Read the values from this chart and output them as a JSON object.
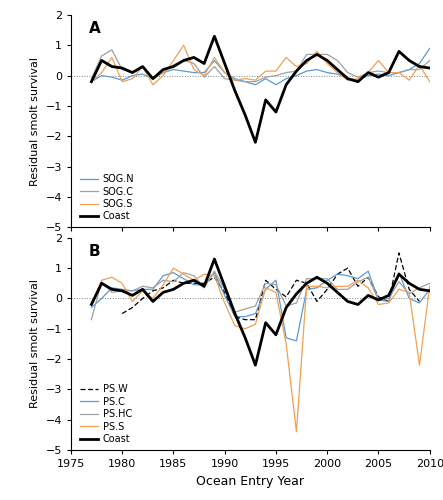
{
  "years": [
    1977,
    1978,
    1979,
    1980,
    1981,
    1982,
    1983,
    1984,
    1985,
    1986,
    1987,
    1988,
    1989,
    1990,
    1991,
    1992,
    1993,
    1994,
    1995,
    1996,
    1997,
    1998,
    1999,
    2000,
    2001,
    2002,
    2003,
    2004,
    2005,
    2006,
    2007,
    2008,
    2009,
    2010
  ],
  "coast": [
    -0.2,
    0.5,
    0.3,
    0.25,
    0.1,
    0.3,
    -0.1,
    0.2,
    0.3,
    0.5,
    0.6,
    0.4,
    1.3,
    0.4,
    -0.5,
    -1.3,
    -2.2,
    -0.8,
    -1.2,
    -0.3,
    0.15,
    0.5,
    0.7,
    0.5,
    0.2,
    -0.1,
    -0.2,
    0.1,
    -0.05,
    0.1,
    0.8,
    0.5,
    0.3,
    0.25
  ],
  "SOG_N": [
    -0.2,
    0.0,
    -0.05,
    -0.15,
    0.0,
    0.05,
    -0.1,
    0.1,
    0.2,
    0.15,
    0.1,
    0.1,
    0.5,
    0.1,
    -0.1,
    -0.2,
    -0.3,
    -0.1,
    -0.3,
    -0.1,
    0.0,
    0.15,
    0.2,
    0.1,
    0.05,
    -0.1,
    -0.15,
    0.0,
    0.05,
    0.0,
    0.1,
    0.2,
    0.4,
    0.9
  ],
  "SOG_C": [
    -0.1,
    0.65,
    0.85,
    0.2,
    0.1,
    0.3,
    -0.1,
    0.1,
    0.35,
    0.5,
    0.4,
    -0.05,
    0.3,
    -0.1,
    -0.15,
    -0.2,
    -0.2,
    -0.05,
    0.0,
    0.1,
    0.15,
    0.7,
    0.7,
    0.7,
    0.5,
    0.1,
    -0.05,
    0.1,
    0.15,
    0.1,
    0.1,
    0.2,
    0.2,
    0.5
  ],
  "SOG_S": [
    -0.2,
    0.1,
    0.6,
    -0.2,
    -0.1,
    0.3,
    -0.3,
    0.0,
    0.5,
    1.0,
    0.2,
    0.0,
    0.6,
    0.1,
    -0.15,
    -0.1,
    -0.15,
    0.15,
    0.15,
    0.6,
    0.3,
    0.4,
    0.8,
    0.4,
    0.1,
    -0.15,
    -0.1,
    0.1,
    0.5,
    0.1,
    0.1,
    -0.15,
    0.35,
    -0.2
  ],
  "PS_W": [
    null,
    null,
    null,
    -0.5,
    -0.3,
    0.0,
    0.25,
    0.35,
    0.6,
    0.5,
    0.5,
    0.5,
    0.7,
    0.2,
    -0.6,
    -0.7,
    -0.7,
    0.6,
    0.3,
    0.05,
    0.6,
    0.5,
    -0.1,
    0.3,
    0.8,
    1.0,
    0.4,
    0.7,
    0.05,
    -0.1,
    1.5,
    0.3,
    -0.1,
    null
  ],
  "PS_C": [
    -0.3,
    0.0,
    0.35,
    0.3,
    0.25,
    0.3,
    0.3,
    0.75,
    0.85,
    0.65,
    0.45,
    0.45,
    0.85,
    0.1,
    -0.6,
    -0.6,
    -0.5,
    0.3,
    0.6,
    -1.3,
    -1.4,
    0.3,
    0.35,
    0.6,
    0.8,
    0.75,
    0.65,
    0.9,
    -0.05,
    -0.1,
    0.85,
    0.0,
    -0.15,
    0.3
  ],
  "PS_HC": [
    -0.7,
    0.55,
    0.2,
    0.25,
    0.25,
    0.4,
    0.35,
    0.6,
    0.55,
    0.85,
    0.75,
    0.35,
    0.9,
    0.3,
    -0.45,
    -0.35,
    -0.25,
    0.5,
    0.45,
    -0.25,
    -0.15,
    0.65,
    0.65,
    0.65,
    0.3,
    0.3,
    0.55,
    0.7,
    -0.05,
    0.0,
    0.55,
    0.15,
    0.35,
    0.5
  ],
  "PS_S": [
    -0.2,
    0.6,
    0.7,
    0.5,
    -0.1,
    0.25,
    0.0,
    0.45,
    1.0,
    0.8,
    0.6,
    0.8,
    0.75,
    -0.15,
    -0.9,
    -1.0,
    -0.85,
    0.35,
    0.2,
    -1.5,
    -4.4,
    0.4,
    0.4,
    0.35,
    0.4,
    0.4,
    0.6,
    0.35,
    -0.2,
    -0.15,
    0.3,
    0.2,
    -2.2,
    0.4
  ],
  "color_blue": "#5b9bd5",
  "color_gray": "#a0a0a0",
  "color_orange": "#f0a050",
  "color_black": "#000000",
  "ylim": [
    -5,
    2
  ],
  "xlim": [
    1975,
    2010
  ],
  "yticks": [
    -5,
    -4,
    -3,
    -2,
    -1,
    0,
    1,
    2
  ],
  "xticks": [
    1975,
    1980,
    1985,
    1990,
    1995,
    2000,
    2005,
    2010
  ],
  "ylabel": "Residual smolt survival",
  "xlabel": "Ocean Entry Year",
  "legend_A": [
    "SOG.N",
    "SOG.C",
    "SOG.S",
    "Coast"
  ],
  "legend_B": [
    "PS.W",
    "PS.C",
    "PS.HC",
    "PS.S",
    "Coast"
  ],
  "label_A": "A",
  "label_B": "B",
  "title_fontsize": 11,
  "axis_fontsize": 8,
  "legend_fontsize": 7,
  "line_thin": 0.9,
  "line_thick": 2.0,
  "background_color": "#ffffff"
}
